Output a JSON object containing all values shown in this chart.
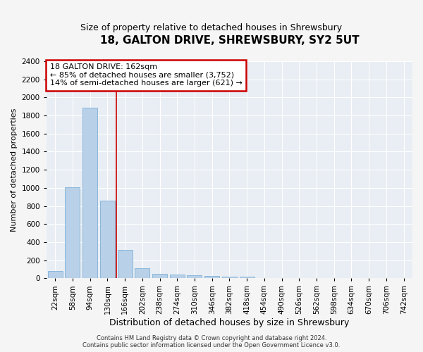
{
  "title": "18, GALTON DRIVE, SHREWSBURY, SY2 5UT",
  "subtitle": "Size of property relative to detached houses in Shrewsbury",
  "xlabel": "Distribution of detached houses by size in Shrewsbury",
  "ylabel": "Number of detached properties",
  "categories": [
    "22sqm",
    "58sqm",
    "94sqm",
    "130sqm",
    "166sqm",
    "202sqm",
    "238sqm",
    "274sqm",
    "310sqm",
    "346sqm",
    "382sqm",
    "418sqm",
    "454sqm",
    "490sqm",
    "526sqm",
    "562sqm",
    "598sqm",
    "634sqm",
    "670sqm",
    "706sqm",
    "742sqm"
  ],
  "values": [
    80,
    1010,
    1890,
    860,
    310,
    115,
    50,
    45,
    35,
    25,
    20,
    15,
    0,
    0,
    0,
    0,
    0,
    0,
    0,
    0,
    0
  ],
  "bar_color": "#b8d0e8",
  "bar_edge_color": "#6fa8d4",
  "bar_width": 0.85,
  "ylim": [
    0,
    2400
  ],
  "yticks": [
    0,
    200,
    400,
    600,
    800,
    1000,
    1200,
    1400,
    1600,
    1800,
    2000,
    2200,
    2400
  ],
  "vline_x": 3.5,
  "vline_color": "#cc0000",
  "annotation_line1": "18 GALTON DRIVE: 162sqm",
  "annotation_line2": "← 85% of detached houses are smaller (3,752)",
  "annotation_line3": "14% of semi-detached houses are larger (621) →",
  "annotation_box_color": "#cc0000",
  "footer_line1": "Contains HM Land Registry data © Crown copyright and database right 2024.",
  "footer_line2": "Contains public sector information licensed under the Open Government Licence v3.0.",
  "fig_bg_color": "#f5f5f5",
  "plot_bg_color": "#e8eef4",
  "grid_color": "#ffffff",
  "title_fontsize": 11,
  "subtitle_fontsize": 9,
  "ylabel_fontsize": 8,
  "xlabel_fontsize": 9,
  "tick_fontsize": 7.5,
  "annotation_fontsize": 8,
  "footer_fontsize": 6
}
